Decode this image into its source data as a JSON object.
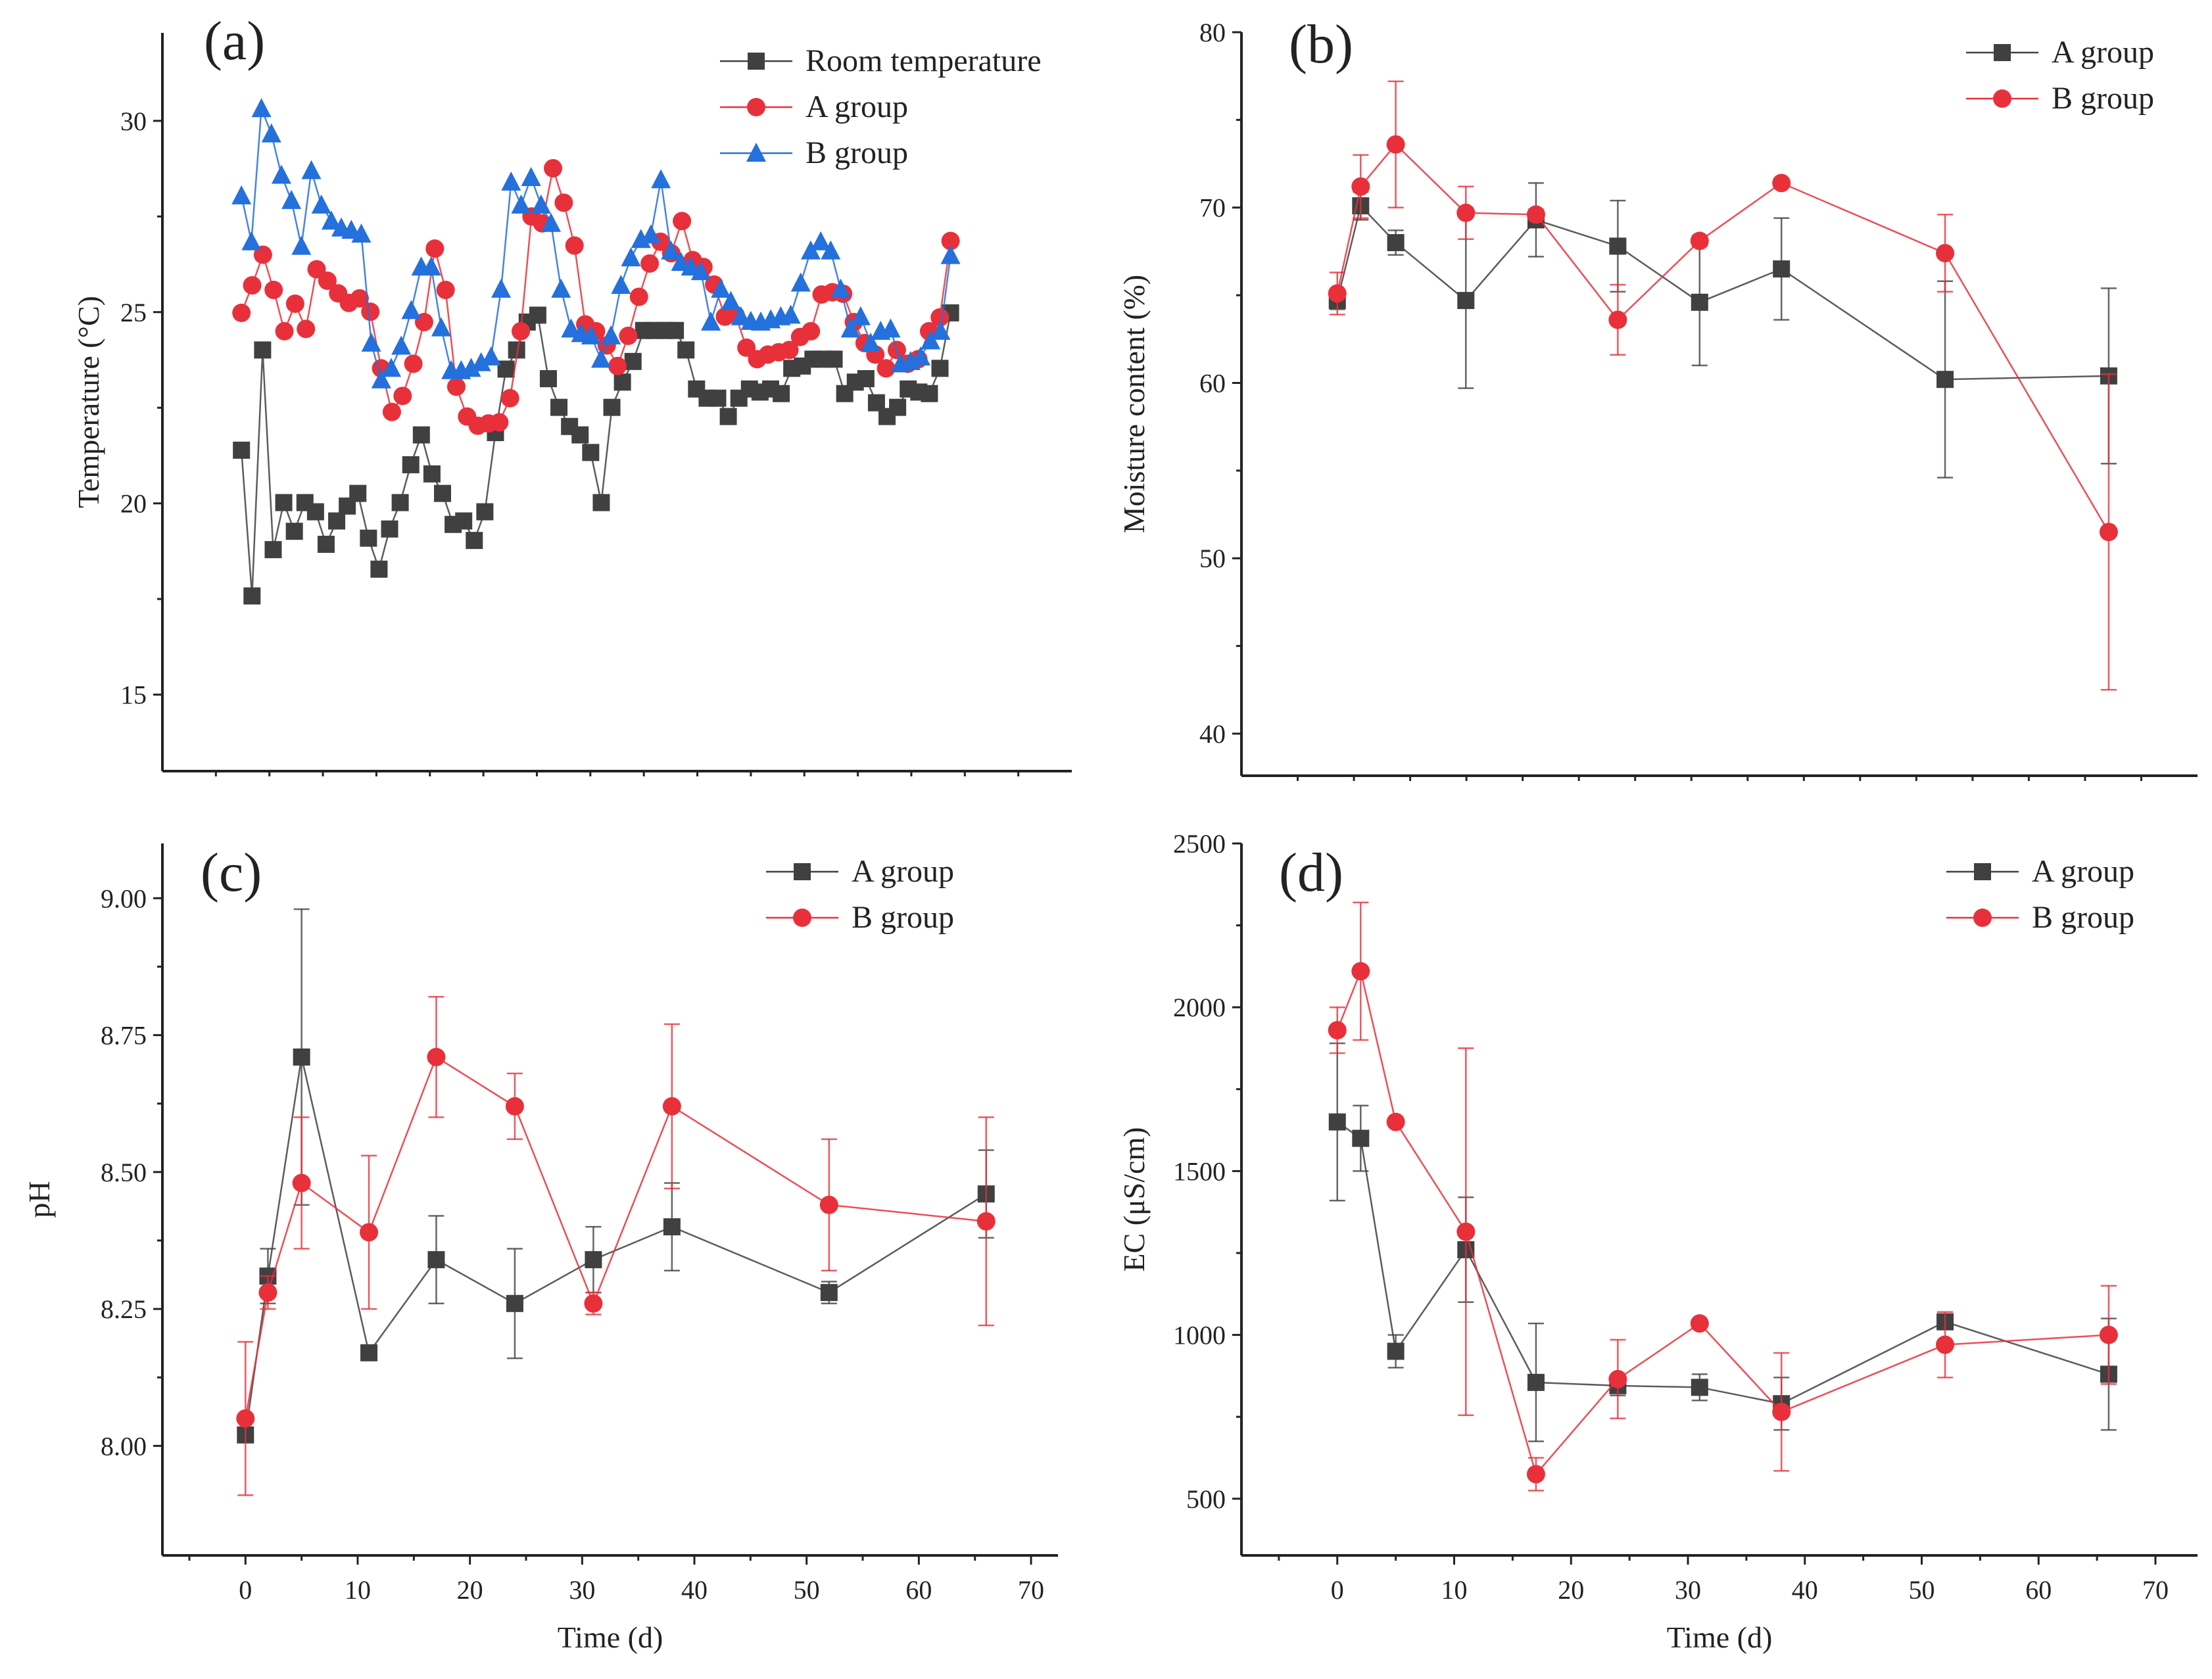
{
  "colors": {
    "room": "#404040",
    "A_dark": "#404040",
    "A_red": "#e8303a",
    "B_red": "#e8303a",
    "B_blue": "#2470dc",
    "axis": "#222222"
  },
  "chart_data": [
    {
      "panel_label": "(a)",
      "type": "line",
      "xlabel": "",
      "ylabel": "Temperature (°C)",
      "ylim": [
        13.0,
        32.3
      ],
      "xlim": [
        -7,
        77
      ],
      "yticks": [
        15,
        20,
        25,
        30
      ],
      "ytick_labels": [
        "15",
        "20",
        "25",
        "30"
      ],
      "show_xticks": false,
      "legend": "top-right",
      "series": [
        {
          "name": "Room temperature",
          "marker": "square",
          "color_key": "room",
          "values": [
            21.39,
            17.58,
            24.01,
            18.79,
            20.02,
            19.27,
            20.02,
            19.78,
            18.93,
            19.54,
            19.93,
            20.26,
            19.09,
            18.28,
            19.33,
            20.02,
            21.01,
            21.79,
            20.77,
            20.26,
            19.45,
            19.54,
            19.03,
            19.78,
            21.85,
            23.51,
            24.01,
            24.74,
            24.92,
            23.26,
            22.51,
            22.01,
            21.79,
            21.33,
            20.02,
            22.51,
            23.17,
            23.71,
            24.52,
            24.52,
            24.52,
            24.52,
            24.01,
            22.99,
            22.75,
            22.75,
            22.27,
            22.75,
            22.99,
            22.91,
            22.99,
            22.87,
            23.53,
            23.59,
            23.77,
            23.77,
            23.77,
            22.87,
            23.17,
            23.26,
            22.63,
            22.27,
            22.51,
            22.99,
            22.91,
            22.87,
            23.53,
            24.98
          ]
        },
        {
          "name": "A group",
          "marker": "circle",
          "color_key": "A_red",
          "values": [
            24.98,
            25.7,
            26.5,
            25.58,
            24.5,
            25.22,
            24.56,
            26.12,
            25.82,
            25.49,
            25.24,
            25.36,
            25.01,
            23.53,
            22.39,
            22.81,
            23.65,
            24.74,
            26.66,
            25.58,
            23.05,
            22.27,
            22.03,
            22.09,
            22.12,
            22.75,
            24.5,
            27.5,
            27.32,
            28.76,
            27.86,
            26.74,
            24.68,
            24.5,
            24.13,
            23.59,
            24.38,
            25.4,
            26.27,
            26.84,
            26.54,
            27.38,
            26.36,
            26.18,
            25.72,
            24.88,
            24.92,
            24.07,
            23.77,
            23.89,
            23.95,
            24.01,
            24.35,
            24.5,
            25.46,
            25.52,
            25.48,
            24.74,
            24.19,
            23.89,
            23.53,
            24.01,
            23.65,
            23.77,
            24.5,
            24.86,
            26.86
          ]
        },
        {
          "name": "B group",
          "marker": "triangle",
          "color_key": "B_blue",
          "values": [
            28.04,
            26.84,
            30.32,
            29.66,
            28.58,
            27.92,
            26.72,
            28.7,
            27.8,
            27.38,
            27.2,
            27.14,
            27.04,
            24.19,
            23.23,
            23.53,
            24.11,
            25.04,
            26.18,
            26.18,
            24.59,
            23.47,
            23.47,
            23.53,
            23.68,
            23.83,
            25.6,
            28.4,
            27.8,
            28.52,
            27.8,
            27.32,
            25.6,
            24.56,
            24.44,
            24.38,
            23.77,
            24.38,
            25.7,
            26.42,
            26.9,
            27.02,
            28.46,
            26.6,
            26.3,
            26.18,
            26.06,
            24.74,
            25.6,
            25.28,
            24.88,
            24.76,
            24.74,
            24.8,
            24.88,
            24.92,
            25.76,
            26.6,
            26.84,
            26.6,
            25.6,
            24.56,
            24.88,
            24.19,
            24.5,
            24.56,
            23.65,
            23.71,
            23.83,
            24.25,
            24.5,
            26.48
          ]
        }
      ]
    },
    {
      "panel_label": "(b)",
      "type": "line",
      "xlabel": "",
      "ylabel": "Moisture content (%)",
      "ylim": [
        37.6,
        80
      ],
      "xlim": [
        -8.2,
        73.6
      ],
      "yticks": [
        40,
        50,
        60,
        70,
        80
      ],
      "ytick_labels": [
        "40",
        "50",
        "60",
        "70",
        "80"
      ],
      "show_xticks": false,
      "legend": "top-right",
      "x": [
        0,
        2,
        5,
        11,
        17,
        24,
        31,
        38,
        52,
        66
      ],
      "series": [
        {
          "name": "A group",
          "marker": "square",
          "color_key": "A_dark",
          "values": [
            64.7,
            70.1,
            68.0,
            64.7,
            69.3,
            67.8,
            64.6,
            66.5,
            60.2,
            60.4
          ],
          "errors": [
            0.5,
            0.8,
            0.7,
            5.0,
            2.1,
            2.6,
            3.6,
            2.9,
            5.6,
            5.0
          ]
        },
        {
          "name": "B group",
          "marker": "circle",
          "color_key": "B_red",
          "values": [
            65.1,
            71.2,
            73.6,
            69.7,
            69.6,
            63.6,
            68.1,
            71.4,
            67.4,
            51.5
          ],
          "errors": [
            1.2,
            1.8,
            3.6,
            1.5,
            0.3,
            2.0,
            0.3,
            0.2,
            2.2,
            9.0
          ]
        }
      ]
    },
    {
      "panel_label": "(c)",
      "type": "line",
      "xlabel": "Time (d)",
      "ylabel": "pH",
      "ylim": [
        7.8,
        9.1
      ],
      "xlim": [
        -7.4,
        72.4
      ],
      "yticks": [
        8.0,
        8.25,
        8.5,
        8.75,
        9.0
      ],
      "ytick_labels": [
        "8.00",
        "8.25",
        "8.50",
        "8.75",
        "9.00"
      ],
      "xticks": [
        0,
        10,
        20,
        30,
        40,
        50,
        60,
        70
      ],
      "xtick_labels": [
        "0",
        "10",
        "20",
        "30",
        "40",
        "50",
        "60",
        "70"
      ],
      "show_xticks": true,
      "legend": "top-right",
      "x": [
        0,
        2,
        5,
        11,
        17,
        24,
        31,
        38,
        52,
        66
      ],
      "series": [
        {
          "name": "A group",
          "marker": "square",
          "color_key": "A_dark",
          "values": [
            8.02,
            8.31,
            8.71,
            8.17,
            8.34,
            8.26,
            8.34,
            8.4,
            8.28,
            8.46
          ],
          "errors": [
            0.01,
            0.05,
            0.27,
            0.01,
            0.08,
            0.1,
            0.06,
            0.08,
            0.02,
            0.08
          ]
        },
        {
          "name": "B group",
          "marker": "circle",
          "color_key": "B_red",
          "values": [
            8.05,
            8.28,
            8.48,
            8.39,
            8.71,
            8.62,
            8.26,
            8.62,
            8.44,
            8.41
          ],
          "errors": [
            0.14,
            0.03,
            0.12,
            0.14,
            0.11,
            0.06,
            0.02,
            0.15,
            0.12,
            0.19
          ]
        }
      ]
    },
    {
      "panel_label": "(d)",
      "type": "line",
      "xlabel": "Time (d)",
      "ylabel": "EC (μS/cm)",
      "ylim": [
        327,
        2500
      ],
      "xlim": [
        -8.2,
        73.6
      ],
      "yticks": [
        500,
        1000,
        1500,
        2000,
        2500
      ],
      "ytick_labels": [
        "500",
        "1000",
        "1500",
        "2000",
        "2500"
      ],
      "xticks": [
        0,
        10,
        20,
        30,
        40,
        50,
        60,
        70
      ],
      "xtick_labels": [
        "0",
        "10",
        "20",
        "30",
        "40",
        "50",
        "60",
        "70"
      ],
      "show_xticks": true,
      "legend": "top-right",
      "x": [
        0,
        2,
        5,
        11,
        17,
        24,
        31,
        38,
        52,
        66
      ],
      "series": [
        {
          "name": "A group",
          "marker": "square",
          "color_key": "A_dark",
          "values": [
            1650,
            1600,
            950,
            1260,
            855,
            845,
            840,
            790,
            1040,
            880
          ],
          "errors": [
            240,
            100,
            50,
            160,
            180,
            30,
            40,
            80,
            10,
            170
          ]
        },
        {
          "name": "B group",
          "marker": "circle",
          "color_key": "B_red",
          "values": [
            1930,
            2110,
            1650,
            1315,
            575,
            865,
            1035,
            765,
            970,
            1000
          ],
          "errors": [
            70,
            210,
            0,
            560,
            50,
            120,
            0,
            180,
            100,
            150
          ]
        }
      ]
    }
  ]
}
